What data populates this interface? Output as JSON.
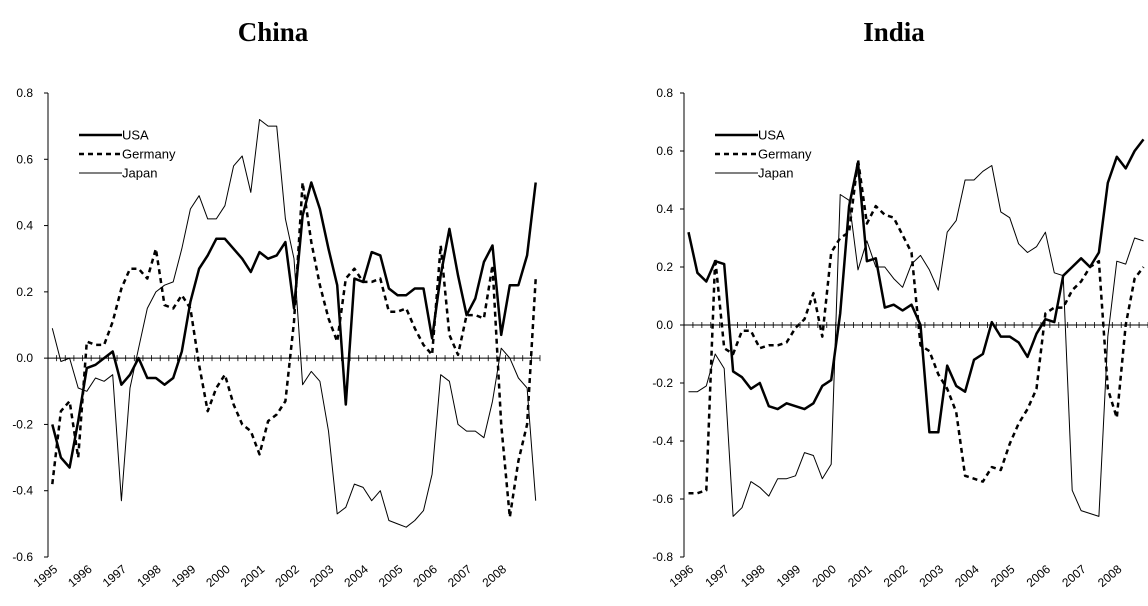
{
  "chart_data": [
    {
      "type": "line",
      "title": "China",
      "ylim": [
        -0.6,
        0.8
      ],
      "yticks": [
        "0.8",
        "0.6",
        "0.4",
        "0.2",
        "0.0",
        "-0.2",
        "-0.4",
        "-0.6"
      ],
      "xticks": [
        "1995",
        "1996",
        "1997",
        "1998",
        "1999",
        "2000",
        "2001",
        "2002",
        "2003",
        "2004",
        "2005",
        "2006",
        "2007",
        "2008"
      ],
      "x_start": 1995,
      "legend": "top-left",
      "series": [
        {
          "name": "USA",
          "style": "bold",
          "values": [
            -0.2,
            -0.3,
            -0.33,
            -0.19,
            -0.03,
            -0.02,
            0.0,
            0.02,
            -0.08,
            -0.05,
            0.0,
            -0.06,
            -0.06,
            -0.08,
            -0.06,
            0.02,
            0.17,
            0.27,
            0.31,
            0.36,
            0.36,
            0.33,
            0.3,
            0.26,
            0.32,
            0.3,
            0.31,
            0.35,
            0.15,
            0.43,
            0.53,
            0.45,
            0.33,
            0.22,
            -0.14,
            0.24,
            0.23,
            0.32,
            0.31,
            0.21,
            0.19,
            0.19,
            0.21,
            0.21,
            0.06,
            0.25,
            0.39,
            0.25,
            0.13,
            0.18,
            0.29,
            0.34,
            0.07,
            0.22,
            0.22,
            0.31,
            0.53
          ]
        },
        {
          "name": "Germany",
          "style": "dashed",
          "values": [
            -0.38,
            -0.16,
            -0.13,
            -0.3,
            0.05,
            0.04,
            0.04,
            0.11,
            0.21,
            0.27,
            0.27,
            0.24,
            0.33,
            0.16,
            0.15,
            0.19,
            0.15,
            -0.02,
            -0.16,
            -0.09,
            -0.05,
            -0.14,
            -0.2,
            -0.22,
            -0.29,
            -0.19,
            -0.17,
            -0.13,
            0.11,
            0.53,
            0.35,
            0.22,
            0.12,
            0.05,
            0.24,
            0.27,
            0.23,
            0.23,
            0.24,
            0.14,
            0.14,
            0.15,
            0.09,
            0.04,
            0.01,
            0.34,
            0.07,
            0.01,
            0.13,
            0.13,
            0.12,
            0.28,
            -0.2,
            -0.48,
            -0.31,
            -0.2,
            0.24
          ]
        },
        {
          "name": "Japan",
          "style": "thin",
          "values": [
            0.09,
            -0.01,
            0.0,
            -0.09,
            -0.1,
            -0.06,
            -0.07,
            -0.05,
            -0.43,
            -0.09,
            0.03,
            0.15,
            0.2,
            0.22,
            0.23,
            0.33,
            0.45,
            0.49,
            0.42,
            0.42,
            0.46,
            0.58,
            0.61,
            0.5,
            0.72,
            0.7,
            0.7,
            0.42,
            0.3,
            -0.08,
            -0.04,
            -0.07,
            -0.22,
            -0.47,
            -0.45,
            -0.38,
            -0.39,
            -0.43,
            -0.4,
            -0.49,
            -0.5,
            -0.51,
            -0.49,
            -0.46,
            -0.35,
            -0.05,
            -0.07,
            -0.2,
            -0.22,
            -0.22,
            -0.24,
            -0.13,
            0.03,
            0.0,
            -0.06,
            -0.09,
            -0.43
          ]
        }
      ]
    },
    {
      "type": "line",
      "title": "India",
      "ylim": [
        -0.8,
        0.8
      ],
      "yticks": [
        "0.8",
        "0.6",
        "0.4",
        "0.2",
        "0.0",
        "-0.2",
        "-0.4",
        "-0.6",
        "-0.8"
      ],
      "xticks": [
        "1996",
        "1997",
        "1998",
        "1999",
        "2000",
        "2001",
        "2002",
        "2003",
        "2004",
        "2005",
        "2006",
        "2007",
        "2008"
      ],
      "x_start": 1996,
      "legend": "top-left",
      "series": [
        {
          "name": "USA",
          "style": "bold",
          "values": [
            0.32,
            0.18,
            0.15,
            0.22,
            0.21,
            -0.16,
            -0.18,
            -0.22,
            -0.2,
            -0.28,
            -0.29,
            -0.27,
            -0.28,
            -0.29,
            -0.27,
            -0.21,
            -0.19,
            0.04,
            0.41,
            0.56,
            0.22,
            0.23,
            0.06,
            0.07,
            0.05,
            0.07,
            0.0,
            -0.37,
            -0.37,
            -0.14,
            -0.21,
            -0.23,
            -0.12,
            -0.1,
            0.01,
            -0.04,
            -0.04,
            -0.06,
            -0.11,
            -0.03,
            0.02,
            0.01,
            0.17,
            0.2,
            0.23,
            0.2,
            0.25,
            0.49,
            0.58,
            0.54,
            0.6,
            0.64
          ]
        },
        {
          "name": "Germany",
          "style": "dashed",
          "values": [
            -0.58,
            -0.58,
            -0.57,
            0.23,
            -0.08,
            -0.1,
            -0.02,
            -0.02,
            -0.08,
            -0.07,
            -0.07,
            -0.06,
            -0.01,
            0.02,
            0.11,
            -0.04,
            0.25,
            0.3,
            0.32,
            0.57,
            0.35,
            0.41,
            0.38,
            0.37,
            0.31,
            0.25,
            -0.07,
            -0.09,
            -0.17,
            -0.22,
            -0.3,
            -0.52,
            -0.53,
            -0.54,
            -0.49,
            -0.5,
            -0.41,
            -0.34,
            -0.29,
            -0.22,
            0.04,
            0.06,
            0.06,
            0.12,
            0.15,
            0.2,
            0.22,
            -0.22,
            -0.32,
            0.0,
            0.16,
            0.2
          ]
        },
        {
          "name": "Japan",
          "style": "thin",
          "values": [
            -0.23,
            -0.23,
            -0.21,
            -0.1,
            -0.15,
            -0.66,
            -0.63,
            -0.54,
            -0.56,
            -0.59,
            -0.53,
            -0.53,
            -0.52,
            -0.44,
            -0.45,
            -0.53,
            -0.48,
            0.45,
            0.43,
            0.19,
            0.29,
            0.2,
            0.2,
            0.16,
            0.13,
            0.21,
            0.24,
            0.19,
            0.12,
            0.32,
            0.36,
            0.5,
            0.5,
            0.53,
            0.55,
            0.39,
            0.37,
            0.28,
            0.25,
            0.27,
            0.32,
            0.18,
            0.17,
            -0.57,
            -0.64,
            -0.65,
            -0.66,
            -0.04,
            0.22,
            0.21,
            0.3,
            0.29
          ]
        }
      ]
    }
  ]
}
